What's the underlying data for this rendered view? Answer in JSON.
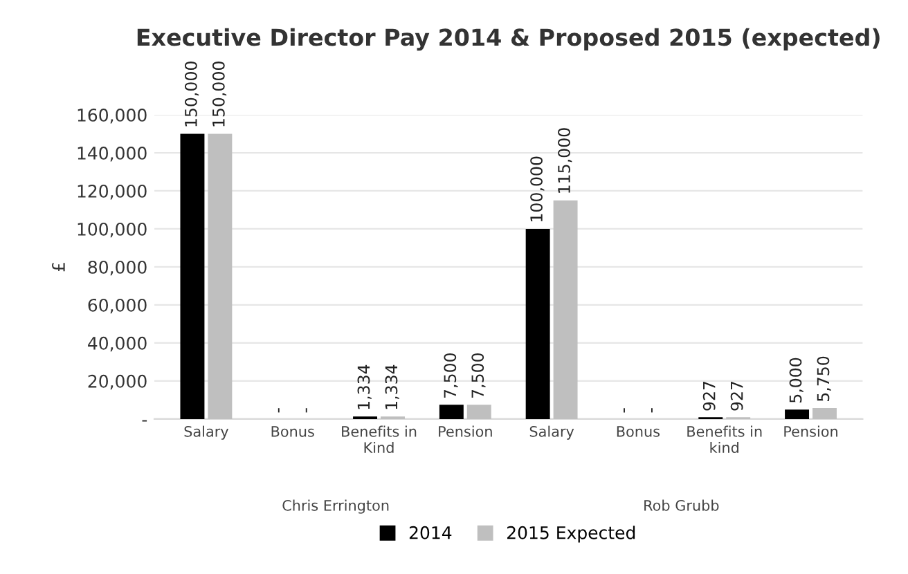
{
  "chart_data": {
    "type": "bar",
    "title": "Executive Director Pay 2014 & Proposed 2015 (expected)",
    "ylabel": "£",
    "categories": [
      "Salary",
      "Bonus",
      "Benefits in\nKind",
      "Pension",
      "Salary",
      "Bonus",
      "Benefits in\nkind",
      "Pension"
    ],
    "series": [
      {
        "name": "2014",
        "color": "#000000",
        "values": [
          150000,
          0,
          1334,
          7500,
          100000,
          0,
          927,
          5000
        ],
        "value_labels": [
          "150,000",
          "-",
          "1,334",
          "7,500",
          "100,000",
          "-",
          "927",
          "5,000"
        ]
      },
      {
        "name": "2015 Expected",
        "color": "#bfbfbf",
        "values": [
          150000,
          0,
          1334,
          7500,
          115000,
          0,
          927,
          5750
        ],
        "value_labels": [
          "150,000",
          "-",
          "1,334",
          "7,500",
          "115,000",
          "-",
          "927",
          "5,750"
        ]
      }
    ],
    "annotations": [
      "Chris Errington",
      "Rob Grubb"
    ],
    "ylim": [
      0,
      160000
    ],
    "yticks": [
      {
        "value": 0,
        "label": "-"
      },
      {
        "value": 20000,
        "label": "20,000"
      },
      {
        "value": 40000,
        "label": "40,000"
      },
      {
        "value": 60000,
        "label": "60,000"
      },
      {
        "value": 80000,
        "label": "80,000"
      },
      {
        "value": 100000,
        "label": "100,000"
      },
      {
        "value": 120000,
        "label": "120,000"
      },
      {
        "value": 140000,
        "label": "140,000"
      },
      {
        "value": 160000,
        "label": "160,000"
      }
    ],
    "grid": "y",
    "legend": "bottom"
  }
}
